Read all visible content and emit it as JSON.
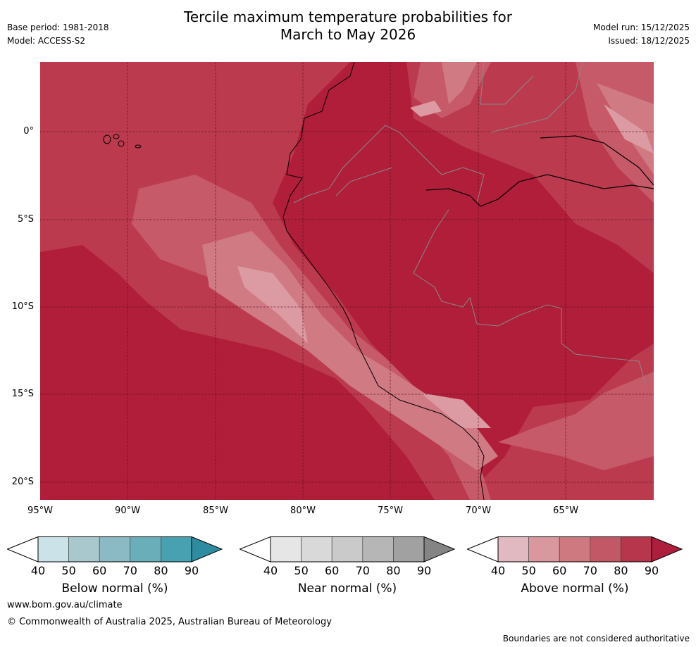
{
  "header": {
    "title_line1": "Tercile maximum temperature probabilities for",
    "title_line2": "March to May 2026",
    "base_period": "Base period: 1981-2018",
    "model": "Model: ACCESS-S2",
    "model_run": "Model run: 15/12/2025",
    "issued": "Issued: 18/12/2025"
  },
  "map": {
    "lat_labels": [
      "0°",
      "5°S",
      "10°S",
      "15°S",
      "20°S"
    ],
    "lon_labels": [
      "95°W",
      "90°W",
      "85°W",
      "80°W",
      "75°W",
      "70°W",
      "65°W"
    ]
  },
  "legends": [
    {
      "label": "Below normal (%)",
      "ticks": [
        "40",
        "50",
        "60",
        "70",
        "80",
        "90"
      ],
      "colors": [
        "#ffffff",
        "#cbe3e8",
        "#a9c8cd",
        "#8bb9c4",
        "#6aaeb9",
        "#48a1b1",
        "#2e8ca0"
      ]
    },
    {
      "label": "Near normal (%)",
      "ticks": [
        "40",
        "50",
        "60",
        "70",
        "80",
        "90"
      ],
      "colors": [
        "#ffffff",
        "#e6e6e6",
        "#d9d9d9",
        "#cacaca",
        "#b6b6b6",
        "#a1a1a1",
        "#848484"
      ]
    },
    {
      "label": "Above normal (%)",
      "ticks": [
        "40",
        "50",
        "60",
        "70",
        "80",
        "90"
      ],
      "colors": [
        "#ffffff",
        "#e1b9c0",
        "#d9979e",
        "#ce7980",
        "#c25766",
        "#b8364b",
        "#ad1f3c"
      ]
    }
  ],
  "footer": {
    "website": "www.bom.gov.au/climate",
    "copyright": "© Commonwealth of Australia 2025, Australian Bureau of Meteorology",
    "disclaimer": "Boundaries are not considered authoritative"
  }
}
